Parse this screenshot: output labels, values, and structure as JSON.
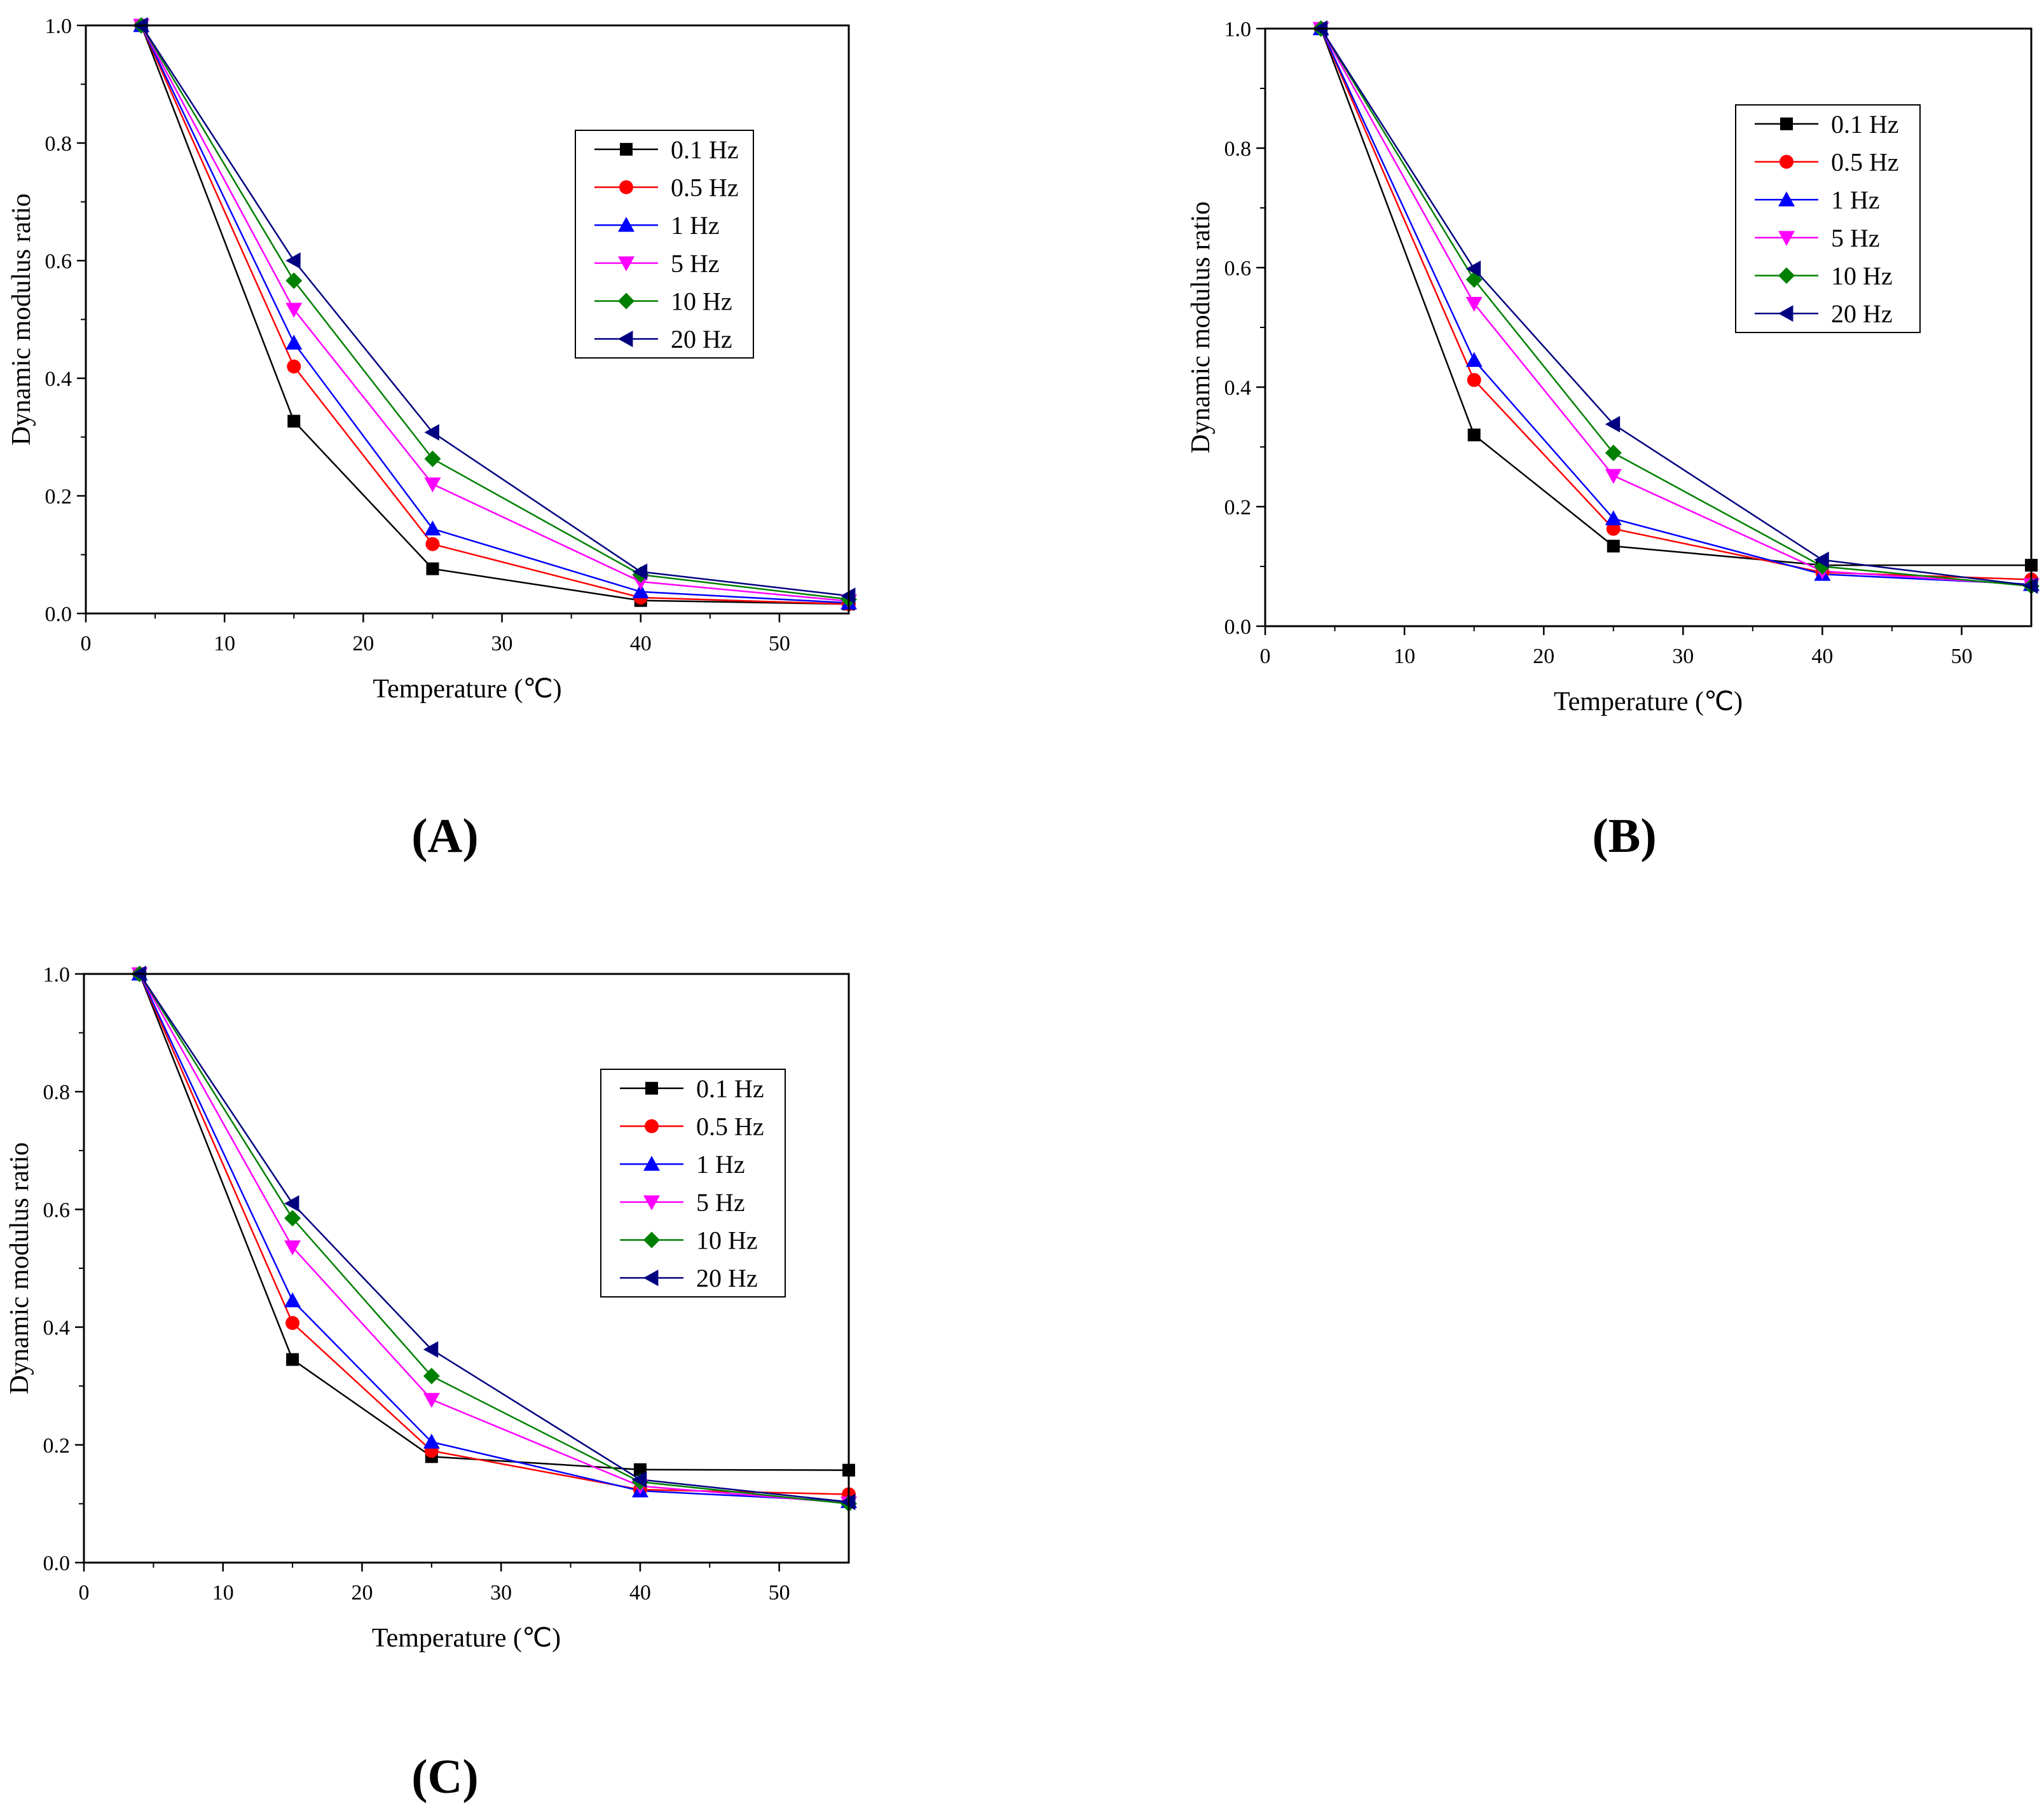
{
  "figure": {
    "background": "#ffffff"
  },
  "series_style": [
    {
      "name": "0.1 Hz",
      "color": "#000000",
      "marker": "square"
    },
    {
      "name": "0.5 Hz",
      "color": "#ff0000",
      "marker": "circle"
    },
    {
      "name": "1 Hz",
      "color": "#0000ff",
      "marker": "triangle-up"
    },
    {
      "name": "5 Hz",
      "color": "#ff00ff",
      "marker": "triangle-down"
    },
    {
      "name": "10 Hz",
      "color": "#008000",
      "marker": "diamond"
    },
    {
      "name": "20 Hz",
      "color": "#000080",
      "marker": "triangle-left"
    }
  ],
  "chart_data": [
    {
      "id": "A",
      "type": "line",
      "panel_label": "(A)",
      "xlabel": "Temperature (℃)",
      "ylabel": "Dynamic modulus ratio",
      "xlim": [
        0,
        55
      ],
      "ylim": [
        0,
        1.0
      ],
      "xticks": [
        0,
        10,
        20,
        30,
        40,
        50
      ],
      "yticks": [
        0.0,
        0.2,
        0.4,
        0.6,
        0.8,
        1.0
      ],
      "xtick_labels": [
        "0",
        "10",
        "20",
        "30",
        "40",
        "50"
      ],
      "ytick_labels": [
        "0.0",
        "0.2",
        "0.4",
        "0.6",
        "0.8",
        "1.0"
      ],
      "legend_position": "upper-right",
      "x": [
        4,
        15,
        25,
        40,
        55
      ],
      "series": [
        {
          "name": "0.1 Hz",
          "values": [
            1.0,
            0.327,
            0.076,
            0.022,
            0.016
          ]
        },
        {
          "name": "0.5 Hz",
          "values": [
            1.0,
            0.42,
            0.118,
            0.027,
            0.016
          ]
        },
        {
          "name": "1 Hz",
          "values": [
            1.0,
            0.46,
            0.144,
            0.037,
            0.018
          ]
        },
        {
          "name": "5 Hz",
          "values": [
            1.0,
            0.517,
            0.22,
            0.054,
            0.021
          ]
        },
        {
          "name": "10 Hz",
          "values": [
            1.0,
            0.566,
            0.263,
            0.066,
            0.024
          ]
        },
        {
          "name": "20 Hz",
          "values": [
            1.0,
            0.6,
            0.308,
            0.071,
            0.03
          ]
        }
      ]
    },
    {
      "id": "B",
      "type": "line",
      "panel_label": "(B)",
      "xlabel": "Temperature (℃)",
      "ylabel": "Dynamic modulus ratio",
      "xlim": [
        0,
        55
      ],
      "ylim": [
        0,
        1.0
      ],
      "xticks": [
        0,
        10,
        20,
        30,
        40,
        50
      ],
      "yticks": [
        0.0,
        0.2,
        0.4,
        0.6,
        0.8,
        1.0
      ],
      "xtick_labels": [
        "0",
        "10",
        "20",
        "30",
        "40",
        "50"
      ],
      "ytick_labels": [
        "0.0",
        "0.2",
        "0.4",
        "0.6",
        "0.8",
        "1.0"
      ],
      "legend_position": "upper-right",
      "x": [
        4,
        15,
        25,
        40,
        55
      ],
      "series": [
        {
          "name": "0.1 Hz",
          "values": [
            1.0,
            0.32,
            0.134,
            0.102,
            0.102
          ]
        },
        {
          "name": "0.5 Hz",
          "values": [
            1.0,
            0.412,
            0.163,
            0.09,
            0.078
          ]
        },
        {
          "name": "1 Hz",
          "values": [
            1.0,
            0.445,
            0.18,
            0.087,
            0.07
          ]
        },
        {
          "name": "5 Hz",
          "values": [
            1.0,
            0.54,
            0.252,
            0.092,
            0.069
          ]
        },
        {
          "name": "10 Hz",
          "values": [
            1.0,
            0.58,
            0.29,
            0.1,
            0.067
          ]
        },
        {
          "name": "20 Hz",
          "values": [
            1.0,
            0.598,
            0.338,
            0.111,
            0.068
          ]
        }
      ]
    },
    {
      "id": "C",
      "type": "line",
      "panel_label": "(C)",
      "xlabel": "Temperature (℃)",
      "ylabel": "Dynamic modulus ratio",
      "xlim": [
        0,
        55
      ],
      "ylim": [
        0,
        1.0
      ],
      "xticks": [
        0,
        10,
        20,
        30,
        40,
        50
      ],
      "yticks": [
        0.0,
        0.2,
        0.4,
        0.6,
        0.8,
        1.0
      ],
      "xtick_labels": [
        "0",
        "10",
        "20",
        "30",
        "40",
        "50"
      ],
      "ytick_labels": [
        "0.0",
        "0.2",
        "0.4",
        "0.6",
        "0.8",
        "1.0"
      ],
      "legend_position": "upper-right",
      "x": [
        4,
        15,
        25,
        40,
        55
      ],
      "series": [
        {
          "name": "0.1 Hz",
          "values": [
            1.0,
            0.345,
            0.18,
            0.158,
            0.157
          ]
        },
        {
          "name": "0.5 Hz",
          "values": [
            1.0,
            0.407,
            0.19,
            0.124,
            0.116
          ]
        },
        {
          "name": "1 Hz",
          "values": [
            1.0,
            0.445,
            0.205,
            0.122,
            0.104
          ]
        },
        {
          "name": "5 Hz",
          "values": [
            1.0,
            0.536,
            0.277,
            0.13,
            0.101
          ]
        },
        {
          "name": "10 Hz",
          "values": [
            1.0,
            0.585,
            0.317,
            0.137,
            0.1
          ]
        },
        {
          "name": "20 Hz",
          "values": [
            1.0,
            0.61,
            0.362,
            0.141,
            0.103
          ]
        }
      ]
    }
  ]
}
